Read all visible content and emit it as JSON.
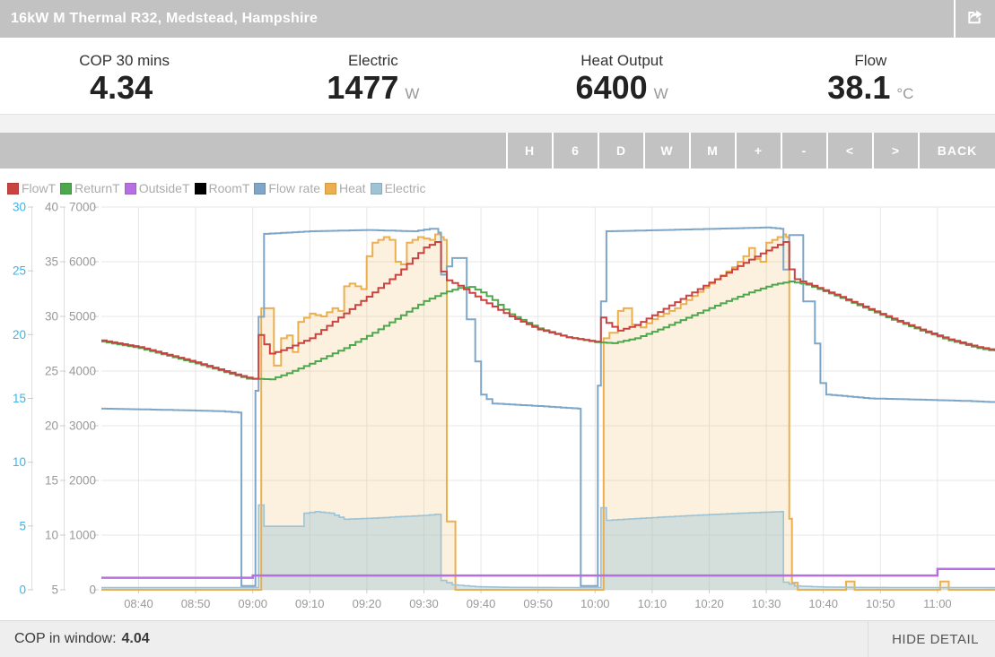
{
  "header": {
    "title": "16kW M Thermal R32, Medstead, Hampshire"
  },
  "stats": [
    {
      "label": "COP 30 mins",
      "value": "4.34",
      "unit": ""
    },
    {
      "label": "Electric",
      "value": "1477",
      "unit": "W"
    },
    {
      "label": "Heat Output",
      "value": "6400",
      "unit": "W"
    },
    {
      "label": "Flow",
      "value": "38.1",
      "unit": "°C"
    }
  ],
  "toolbar": {
    "buttons": [
      "H",
      "6",
      "D",
      "W",
      "M",
      "+",
      "-",
      "<",
      ">",
      "BACK"
    ]
  },
  "footer": {
    "cop_label": "COP in window:",
    "cop_value": "4.04",
    "hide_detail": "HIDE DETAIL"
  },
  "chart_data": {
    "type": "line",
    "grid": true,
    "legend_position": "top-left",
    "x_axis": {
      "domain_hours": [
        8.558,
        11.168
      ],
      "ticks": [
        "08:40",
        "08:50",
        "09:00",
        "09:10",
        "09:20",
        "09:30",
        "09:40",
        "09:50",
        "10:00",
        "10:10",
        "10:20",
        "10:30",
        "10:40",
        "10:50",
        "11:00"
      ]
    },
    "y_axes": [
      {
        "id": "flow",
        "label_color": "#3ab6e8",
        "range": [
          0,
          30
        ],
        "ticks": [
          0,
          5,
          10,
          15,
          20,
          25,
          30
        ]
      },
      {
        "id": "temp",
        "label_color": "#999999",
        "range": [
          5,
          40
        ],
        "ticks": [
          5,
          10,
          15,
          20,
          25,
          30,
          35,
          40
        ]
      },
      {
        "id": "power",
        "label_color": "#999999",
        "range": [
          0,
          7000
        ],
        "ticks": [
          0,
          1000,
          2000,
          3000,
          4000,
          5000,
          6000,
          7000
        ]
      }
    ],
    "series": [
      {
        "name": "Heat",
        "axis": "power",
        "color": "#ecaf50",
        "fill": "rgba(236,175,80,0.18)",
        "width": 2,
        "points": [
          [
            8.558,
            0
          ],
          [
            9.017,
            0
          ],
          [
            9.025,
            5150
          ],
          [
            9.058,
            5150
          ],
          [
            9.062,
            4100
          ],
          [
            9.083,
            4600
          ],
          [
            9.1,
            4650
          ],
          [
            9.117,
            4350
          ],
          [
            9.133,
            4900
          ],
          [
            9.167,
            5050
          ],
          [
            9.2,
            5000
          ],
          [
            9.233,
            5150
          ],
          [
            9.25,
            5100
          ],
          [
            9.267,
            5550
          ],
          [
            9.283,
            5600
          ],
          [
            9.317,
            5500
          ],
          [
            9.333,
            6100
          ],
          [
            9.35,
            6350
          ],
          [
            9.383,
            6450
          ],
          [
            9.4,
            6400
          ],
          [
            9.417,
            6000
          ],
          [
            9.433,
            5950
          ],
          [
            9.45,
            6350
          ],
          [
            9.483,
            6450
          ],
          [
            9.517,
            6400
          ],
          [
            9.533,
            6500
          ],
          [
            9.55,
            6450
          ],
          [
            9.558,
            6400
          ],
          [
            9.567,
            1250
          ],
          [
            9.588,
            1250
          ],
          [
            9.592,
            0
          ],
          [
            10.017,
            0
          ],
          [
            10.025,
            4600
          ],
          [
            10.042,
            4700
          ],
          [
            10.067,
            5100
          ],
          [
            10.083,
            5150
          ],
          [
            10.108,
            4850
          ],
          [
            10.133,
            4800
          ],
          [
            10.167,
            4950
          ],
          [
            10.2,
            5050
          ],
          [
            10.233,
            5150
          ],
          [
            10.267,
            5300
          ],
          [
            10.3,
            5450
          ],
          [
            10.333,
            5600
          ],
          [
            10.367,
            5750
          ],
          [
            10.4,
            5900
          ],
          [
            10.433,
            6100
          ],
          [
            10.45,
            6250
          ],
          [
            10.467,
            6050
          ],
          [
            10.483,
            6000
          ],
          [
            10.5,
            6350
          ],
          [
            10.517,
            6400
          ],
          [
            10.533,
            6450
          ],
          [
            10.55,
            6500
          ],
          [
            10.558,
            6450
          ],
          [
            10.567,
            1300
          ],
          [
            10.575,
            130
          ],
          [
            10.592,
            0
          ],
          [
            10.725,
            0
          ],
          [
            10.733,
            150
          ],
          [
            10.75,
            150
          ],
          [
            10.758,
            0
          ],
          [
            11.0,
            0
          ],
          [
            11.008,
            150
          ],
          [
            11.025,
            150
          ],
          [
            11.033,
            0
          ],
          [
            11.168,
            0
          ]
        ]
      },
      {
        "name": "Electric",
        "axis": "power",
        "color": "#9dc3d4",
        "fill": "rgba(157,195,212,0.42)",
        "width": 1.6,
        "points": [
          [
            8.558,
            40
          ],
          [
            9.008,
            40
          ],
          [
            9.017,
            1550
          ],
          [
            9.033,
            1160
          ],
          [
            9.142,
            1160
          ],
          [
            9.15,
            1400
          ],
          [
            9.183,
            1430
          ],
          [
            9.225,
            1400
          ],
          [
            9.267,
            1290
          ],
          [
            9.35,
            1310
          ],
          [
            9.433,
            1340
          ],
          [
            9.5,
            1360
          ],
          [
            9.533,
            1380
          ],
          [
            9.542,
            1380
          ],
          [
            9.55,
            170
          ],
          [
            9.583,
            90
          ],
          [
            9.65,
            55
          ],
          [
            9.75,
            45
          ],
          [
            9.95,
            40
          ],
          [
            10.008,
            40
          ],
          [
            10.017,
            1500
          ],
          [
            10.033,
            1270
          ],
          [
            10.083,
            1290
          ],
          [
            10.167,
            1320
          ],
          [
            10.25,
            1350
          ],
          [
            10.333,
            1375
          ],
          [
            10.417,
            1400
          ],
          [
            10.5,
            1420
          ],
          [
            10.542,
            1430
          ],
          [
            10.55,
            140
          ],
          [
            10.583,
            70
          ],
          [
            10.667,
            50
          ],
          [
            10.8,
            42
          ],
          [
            11.168,
            40
          ]
        ]
      },
      {
        "name": "Flow rate",
        "axis": "flow",
        "color": "#7ea6c8",
        "width": 2,
        "points": [
          [
            8.558,
            14.2
          ],
          [
            8.75,
            14.1
          ],
          [
            8.9,
            14.0
          ],
          [
            8.958,
            13.9
          ],
          [
            8.967,
            0.3
          ],
          [
            9.0,
            0.3
          ],
          [
            9.008,
            15.6
          ],
          [
            9.017,
            21.4
          ],
          [
            9.033,
            27.9
          ],
          [
            9.167,
            28.1
          ],
          [
            9.333,
            28.2
          ],
          [
            9.467,
            28.1
          ],
          [
            9.517,
            28.3
          ],
          [
            9.542,
            28.0
          ],
          [
            9.55,
            24.7
          ],
          [
            9.583,
            26.0
          ],
          [
            9.617,
            26.0
          ],
          [
            9.625,
            21.2
          ],
          [
            9.642,
            21.2
          ],
          [
            9.65,
            17.9
          ],
          [
            9.667,
            15.3
          ],
          [
            9.7,
            14.6
          ],
          [
            9.833,
            14.4
          ],
          [
            9.95,
            14.2
          ],
          [
            9.958,
            0.3
          ],
          [
            10.0,
            0.3
          ],
          [
            10.008,
            16.0
          ],
          [
            10.017,
            22.6
          ],
          [
            10.033,
            28.1
          ],
          [
            10.2,
            28.2
          ],
          [
            10.35,
            28.3
          ],
          [
            10.5,
            28.4
          ],
          [
            10.542,
            28.3
          ],
          [
            10.55,
            25.1
          ],
          [
            10.567,
            27.8
          ],
          [
            10.6,
            27.8
          ],
          [
            10.608,
            22.6
          ],
          [
            10.625,
            22.6
          ],
          [
            10.642,
            19.3
          ],
          [
            10.658,
            16.2
          ],
          [
            10.675,
            15.3
          ],
          [
            10.8,
            15.0
          ],
          [
            10.95,
            14.9
          ],
          [
            11.083,
            14.8
          ],
          [
            11.168,
            14.7
          ]
        ]
      },
      {
        "name": "OutsideT",
        "axis": "temp",
        "color": "#b56fe0",
        "width": 2.5,
        "points": [
          [
            8.558,
            6.1
          ],
          [
            8.995,
            6.1
          ],
          [
            9.0,
            6.3
          ],
          [
            10.995,
            6.3
          ],
          [
            11.0,
            6.9
          ],
          [
            11.168,
            6.9
          ]
        ]
      },
      {
        "name": "RoomT",
        "axis": "temp",
        "color": "#000000",
        "width": 2,
        "points": []
      },
      {
        "name": "ReturnT",
        "axis": "temp",
        "color": "#4da74d",
        "width": 2,
        "points": [
          [
            8.558,
            27.7
          ],
          [
            8.667,
            27.1
          ],
          [
            8.75,
            26.4
          ],
          [
            8.833,
            25.7
          ],
          [
            8.917,
            24.9
          ],
          [
            8.983,
            24.3
          ],
          [
            9.05,
            24.25
          ],
          [
            9.1,
            24.8
          ],
          [
            9.183,
            25.9
          ],
          [
            9.267,
            27.1
          ],
          [
            9.35,
            28.5
          ],
          [
            9.433,
            30.1
          ],
          [
            9.5,
            31.4
          ],
          [
            9.55,
            32.1
          ],
          [
            9.6,
            32.6
          ],
          [
            9.633,
            32.7
          ],
          [
            9.667,
            32.2
          ],
          [
            9.7,
            31.5
          ],
          [
            9.75,
            30.2
          ],
          [
            9.833,
            28.9
          ],
          [
            9.917,
            28.1
          ],
          [
            10.0,
            27.65
          ],
          [
            10.05,
            27.55
          ],
          [
            10.117,
            28.0
          ],
          [
            10.2,
            29.0
          ],
          [
            10.283,
            30.1
          ],
          [
            10.367,
            31.2
          ],
          [
            10.45,
            32.2
          ],
          [
            10.517,
            32.9
          ],
          [
            10.567,
            33.2
          ],
          [
            10.617,
            32.9
          ],
          [
            10.7,
            31.9
          ],
          [
            10.783,
            30.8
          ],
          [
            10.867,
            29.7
          ],
          [
            10.95,
            28.7
          ],
          [
            11.033,
            27.8
          ],
          [
            11.117,
            27.1
          ],
          [
            11.168,
            26.8
          ]
        ]
      },
      {
        "name": "FlowT",
        "axis": "temp",
        "color": "#c94440",
        "width": 2,
        "points": [
          [
            8.558,
            27.8
          ],
          [
            8.667,
            27.2
          ],
          [
            8.75,
            26.5
          ],
          [
            8.833,
            25.8
          ],
          [
            8.917,
            25.0
          ],
          [
            8.983,
            24.4
          ],
          [
            9.0,
            24.3
          ],
          [
            9.017,
            28.3
          ],
          [
            9.05,
            26.6
          ],
          [
            9.083,
            26.9
          ],
          [
            9.167,
            28.0
          ],
          [
            9.25,
            29.9
          ],
          [
            9.333,
            31.8
          ],
          [
            9.417,
            33.8
          ],
          [
            9.467,
            35.3
          ],
          [
            9.5,
            36.3
          ],
          [
            9.533,
            36.8
          ],
          [
            9.55,
            34.1
          ],
          [
            9.567,
            33.3
          ],
          [
            9.6,
            32.8
          ],
          [
            9.667,
            31.5
          ],
          [
            9.75,
            30.0
          ],
          [
            9.833,
            28.8
          ],
          [
            9.917,
            28.1
          ],
          [
            10.0,
            27.7
          ],
          [
            10.017,
            29.9
          ],
          [
            10.033,
            29.4
          ],
          [
            10.067,
            28.7
          ],
          [
            10.117,
            29.2
          ],
          [
            10.2,
            30.7
          ],
          [
            10.283,
            32.2
          ],
          [
            10.367,
            33.7
          ],
          [
            10.45,
            35.2
          ],
          [
            10.517,
            36.3
          ],
          [
            10.55,
            36.8
          ],
          [
            10.567,
            34.3
          ],
          [
            10.583,
            33.4
          ],
          [
            10.617,
            33.0
          ],
          [
            10.7,
            32.0
          ],
          [
            10.783,
            30.9
          ],
          [
            10.867,
            29.8
          ],
          [
            10.95,
            28.8
          ],
          [
            11.033,
            27.9
          ],
          [
            11.117,
            27.2
          ],
          [
            11.168,
            26.9
          ]
        ]
      }
    ],
    "legend_order": [
      "FlowT",
      "ReturnT",
      "OutsideT",
      "RoomT",
      "Flow rate",
      "Heat",
      "Electric"
    ]
  }
}
